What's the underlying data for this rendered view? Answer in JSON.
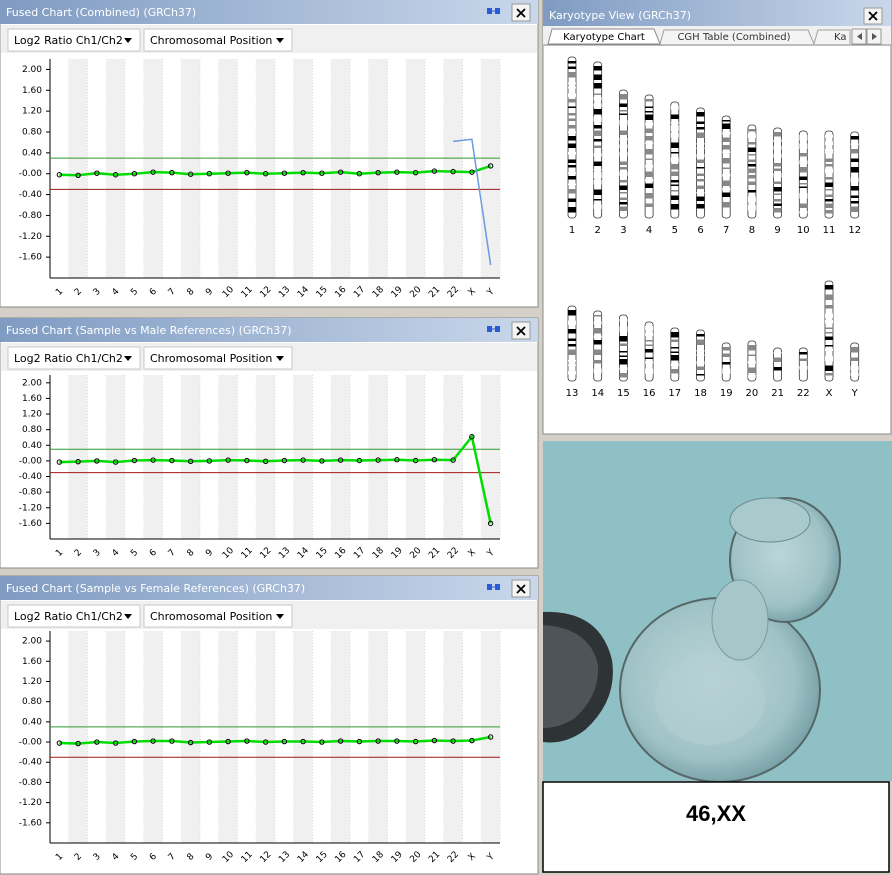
{
  "chart_data": [
    {
      "type": "line",
      "title": "Fused Chart (Combined) (GRCh37)",
      "dropdowns": [
        "Log2 Ratio Ch1/Ch2",
        "Chromosomal Position"
      ],
      "categories": [
        "1",
        "2",
        "3",
        "4",
        "5",
        "6",
        "7",
        "8",
        "9",
        "10",
        "11",
        "12",
        "13",
        "14",
        "15",
        "16",
        "17",
        "18",
        "19",
        "20",
        "21",
        "22",
        "X",
        "Y"
      ],
      "series": [
        {
          "color": "#00dd00",
          "values": [
            -0.02,
            -0.03,
            0.01,
            -0.02,
            0,
            0.03,
            0.02,
            -0.01,
            0,
            0.01,
            0.02,
            0,
            0.01,
            0.02,
            0.01,
            0.03,
            0,
            0.02,
            0.03,
            0.02,
            0.05,
            0.04,
            0.03,
            0.15
          ]
        },
        {
          "color": "#6a9ae0",
          "values": [
            null,
            null,
            null,
            null,
            null,
            null,
            null,
            null,
            null,
            null,
            null,
            null,
            null,
            null,
            null,
            null,
            null,
            null,
            null,
            null,
            null,
            0.62,
            0.66,
            -1.75
          ]
        }
      ],
      "thresholds": [
        {
          "value": 0.3,
          "color": "#2e9a2e"
        },
        {
          "value": -0.3,
          "color": "#a01818"
        }
      ],
      "ylim": [
        -2.0,
        2.2
      ],
      "yticks": [
        {
          "value": 2,
          "label": "2.00"
        },
        {
          "value": 1.6,
          "label": "1.60"
        },
        {
          "value": 1.2,
          "label": "1.20"
        },
        {
          "value": 0.8,
          "label": "0.80"
        },
        {
          "value": 0.4,
          "label": "0.40"
        },
        {
          "value": 0,
          "label": "-0.00"
        },
        {
          "value": -0.4,
          "label": "-0.40"
        },
        {
          "value": -0.8,
          "label": "-0.80"
        },
        {
          "value": -1.2,
          "label": "-1.20"
        },
        {
          "value": -1.6,
          "label": "-1.60"
        }
      ]
    },
    {
      "type": "line",
      "title": "Fused Chart (Sample vs Male References) (GRCh37)",
      "dropdowns": [
        "Log2 Ratio Ch1/Ch2",
        "Chromosomal Position"
      ],
      "categories": [
        "1",
        "2",
        "3",
        "4",
        "5",
        "6",
        "7",
        "8",
        "9",
        "10",
        "11",
        "12",
        "13",
        "14",
        "15",
        "16",
        "17",
        "18",
        "19",
        "20",
        "21",
        "22",
        "X",
        "Y"
      ],
      "series": [
        {
          "color": "#00dd00",
          "values": [
            -0.03,
            -0.02,
            0,
            -0.03,
            0.01,
            0.02,
            0.01,
            -0.01,
            0,
            0.02,
            0.01,
            -0.01,
            0.01,
            0.02,
            0,
            0.02,
            0.01,
            0.02,
            0.03,
            0.01,
            0.03,
            0.02,
            0.62,
            -1.6
          ]
        }
      ],
      "thresholds": [
        {
          "value": 0.3,
          "color": "#2e9a2e"
        },
        {
          "value": -0.3,
          "color": "#a01818"
        }
      ],
      "ylim": [
        -2.0,
        2.2
      ],
      "yticks": [
        {
          "value": 2,
          "label": "2.00"
        },
        {
          "value": 1.6,
          "label": "1.60"
        },
        {
          "value": 1.2,
          "label": "1.20"
        },
        {
          "value": 0.8,
          "label": "0.80"
        },
        {
          "value": 0.4,
          "label": "0.40"
        },
        {
          "value": 0,
          "label": "-0.00"
        },
        {
          "value": -0.4,
          "label": "-0.40"
        },
        {
          "value": -0.8,
          "label": "-0.80"
        },
        {
          "value": -1.2,
          "label": "-1.20"
        },
        {
          "value": -1.6,
          "label": "-1.60"
        }
      ]
    },
    {
      "type": "line",
      "title": "Fused Chart (Sample vs Female References) (GRCh37)",
      "dropdowns": [
        "Log2 Ratio Ch1/Ch2",
        "Chromosomal Position"
      ],
      "categories": [
        "1",
        "2",
        "3",
        "4",
        "5",
        "6",
        "7",
        "8",
        "9",
        "10",
        "11",
        "12",
        "13",
        "14",
        "15",
        "16",
        "17",
        "18",
        "19",
        "20",
        "21",
        "22",
        "X",
        "Y"
      ],
      "series": [
        {
          "color": "#00dd00",
          "values": [
            -0.02,
            -0.03,
            0,
            -0.02,
            0.01,
            0.02,
            0.02,
            -0.01,
            0,
            0.01,
            0.02,
            0,
            0.01,
            0.01,
            0,
            0.02,
            0.01,
            0.02,
            0.02,
            0.01,
            0.03,
            0.02,
            0.03,
            0.1
          ]
        }
      ],
      "thresholds": [
        {
          "value": 0.3,
          "color": "#2e9a2e"
        },
        {
          "value": -0.3,
          "color": "#a01818"
        }
      ],
      "ylim": [
        -2.0,
        2.2
      ],
      "yticks": [
        {
          "value": 2,
          "label": "2.00"
        },
        {
          "value": 1.6,
          "label": "1.60"
        },
        {
          "value": 1.2,
          "label": "1.20"
        },
        {
          "value": 0.8,
          "label": "0.80"
        },
        {
          "value": 0.4,
          "label": "0.40"
        },
        {
          "value": 0,
          "label": "-0.00"
        },
        {
          "value": -0.4,
          "label": "-0.40"
        },
        {
          "value": -0.8,
          "label": "-0.80"
        },
        {
          "value": -1.2,
          "label": "-1.20"
        },
        {
          "value": -1.6,
          "label": "-1.60"
        }
      ]
    }
  ],
  "karyotype": {
    "title": "Karyotype View (GRCh37)",
    "tabs": [
      "Karyotype Chart",
      "CGH Table (Combined)",
      "Ka"
    ],
    "chromosomes": [
      "1",
      "2",
      "3",
      "4",
      "5",
      "6",
      "7",
      "8",
      "9",
      "10",
      "11",
      "12",
      "13",
      "14",
      "15",
      "16",
      "17",
      "18",
      "19",
      "20",
      "21",
      "22",
      "X",
      "Y"
    ]
  },
  "result": "46,XX"
}
